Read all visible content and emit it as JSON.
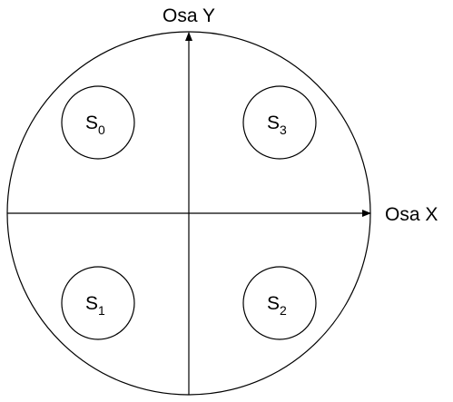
{
  "axes": {
    "y_label": "Osa Y",
    "x_label": "Osa X"
  },
  "sensors": [
    {
      "id": "s0",
      "letter": "S",
      "index": "0"
    },
    {
      "id": "s1",
      "letter": "S",
      "index": "1"
    },
    {
      "id": "s2",
      "letter": "S",
      "index": "2"
    },
    {
      "id": "s3",
      "letter": "S",
      "index": "3"
    }
  ],
  "colors": {
    "stroke": "#000000",
    "background": "#ffffff"
  }
}
